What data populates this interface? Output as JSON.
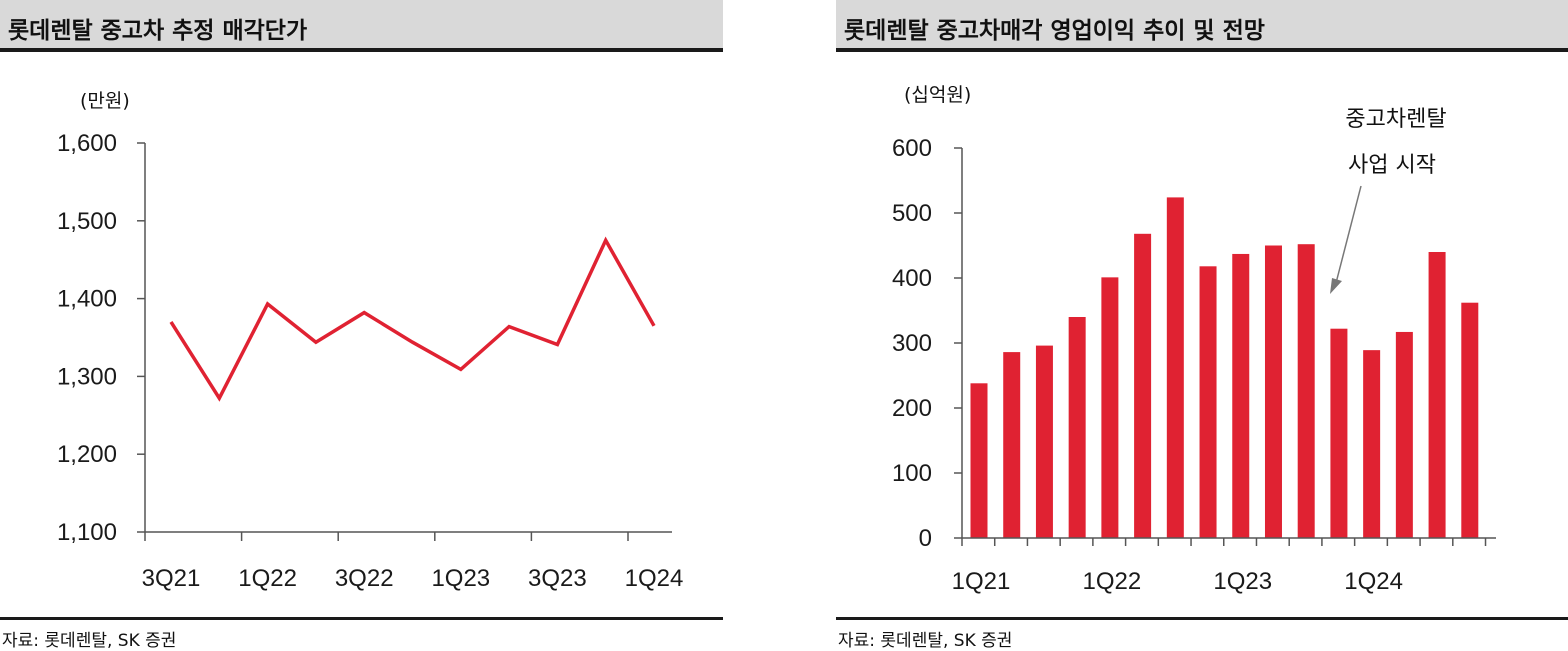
{
  "source": "자료: 롯데렌탈, SK 증권",
  "chart_data": [
    {
      "type": "line",
      "title": "롯데렌탈 중고차 추정 매각단가",
      "unit": "(만원)",
      "x": [
        "3Q21",
        "4Q21",
        "1Q22",
        "2Q22",
        "3Q22",
        "4Q22",
        "1Q23",
        "2Q23",
        "3Q23",
        "4Q23",
        "1Q24"
      ],
      "x_tick_labels": [
        "3Q21",
        "",
        "1Q22",
        "",
        "3Q22",
        "",
        "1Q23",
        "",
        "3Q23",
        "",
        "1Q24"
      ],
      "values": [
        1370,
        1272,
        1393,
        1344,
        1382,
        1344,
        1309,
        1364,
        1341,
        1475,
        1365
      ],
      "y_ticks": [
        "1,100",
        "1,200",
        "1,300",
        "1,400",
        "1,500",
        "1,600"
      ],
      "ylim": [
        1100,
        1600
      ],
      "grid": false,
      "line_color": "#e02232"
    },
    {
      "type": "bar",
      "title": "롯데렌탈 중고차매각 영업이익 추이 및 전망",
      "unit": "(십억원)",
      "x": [
        "1Q21",
        "2Q21",
        "3Q21",
        "4Q21",
        "1Q22",
        "2Q22",
        "3Q22",
        "4Q22",
        "1Q23",
        "2Q23",
        "3Q23",
        "4Q23",
        "1Q24",
        "2Q24",
        "3Q24",
        "4Q24"
      ],
      "x_tick_labels": [
        "1Q21",
        "",
        "",
        "",
        "1Q22",
        "",
        "",
        "",
        "1Q23",
        "",
        "",
        "",
        "1Q24",
        "",
        "",
        ""
      ],
      "values": [
        238,
        286,
        296,
        340,
        401,
        468,
        524,
        418,
        437,
        450,
        452,
        322,
        289,
        317,
        440,
        362
      ],
      "y_ticks": [
        "0",
        "100",
        "200",
        "300",
        "400",
        "500",
        "600"
      ],
      "ylim": [
        0,
        600
      ],
      "grid": false,
      "bar_color": "#e02232",
      "annotation": [
        "중고차렌탈",
        "사업 시작"
      ]
    }
  ]
}
